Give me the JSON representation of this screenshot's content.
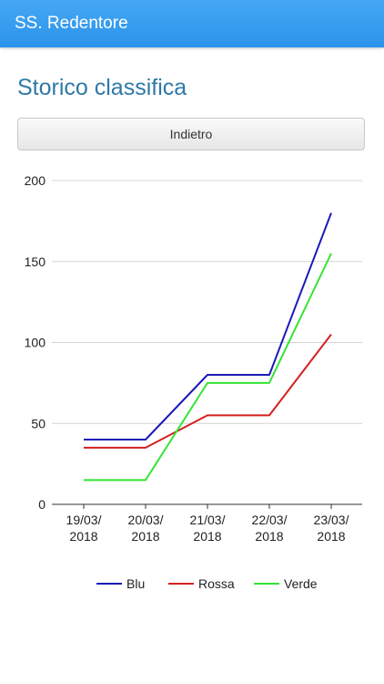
{
  "header": {
    "title": "SS. Redentore"
  },
  "page": {
    "title": "Storico classifica"
  },
  "toolbar": {
    "back_label": "Indietro"
  },
  "chart_data": {
    "type": "line",
    "x": [
      "19/03/2018",
      "20/03/2018",
      "21/03/2018",
      "22/03/2018",
      "23/03/2018"
    ],
    "x_tick_lines": [
      [
        "19/03/",
        "2018"
      ],
      [
        "20/03/",
        "2018"
      ],
      [
        "21/03/",
        "2018"
      ],
      [
        "22/03/",
        "2018"
      ],
      [
        "23/03/",
        "2018"
      ]
    ],
    "series": [
      {
        "name": "Blu",
        "color": "#1a1ab8",
        "values": [
          40,
          40,
          80,
          80,
          180
        ]
      },
      {
        "name": "Rossa",
        "color": "#d42020",
        "values": [
          35,
          35,
          55,
          55,
          105
        ]
      },
      {
        "name": "Verde",
        "color": "#33e433",
        "values": [
          15,
          15,
          75,
          75,
          155
        ]
      }
    ],
    "y_ticks": [
      0,
      50,
      100,
      150,
      200
    ],
    "ylim": [
      0,
      200
    ],
    "grid": true,
    "legend_position": "bottom"
  }
}
